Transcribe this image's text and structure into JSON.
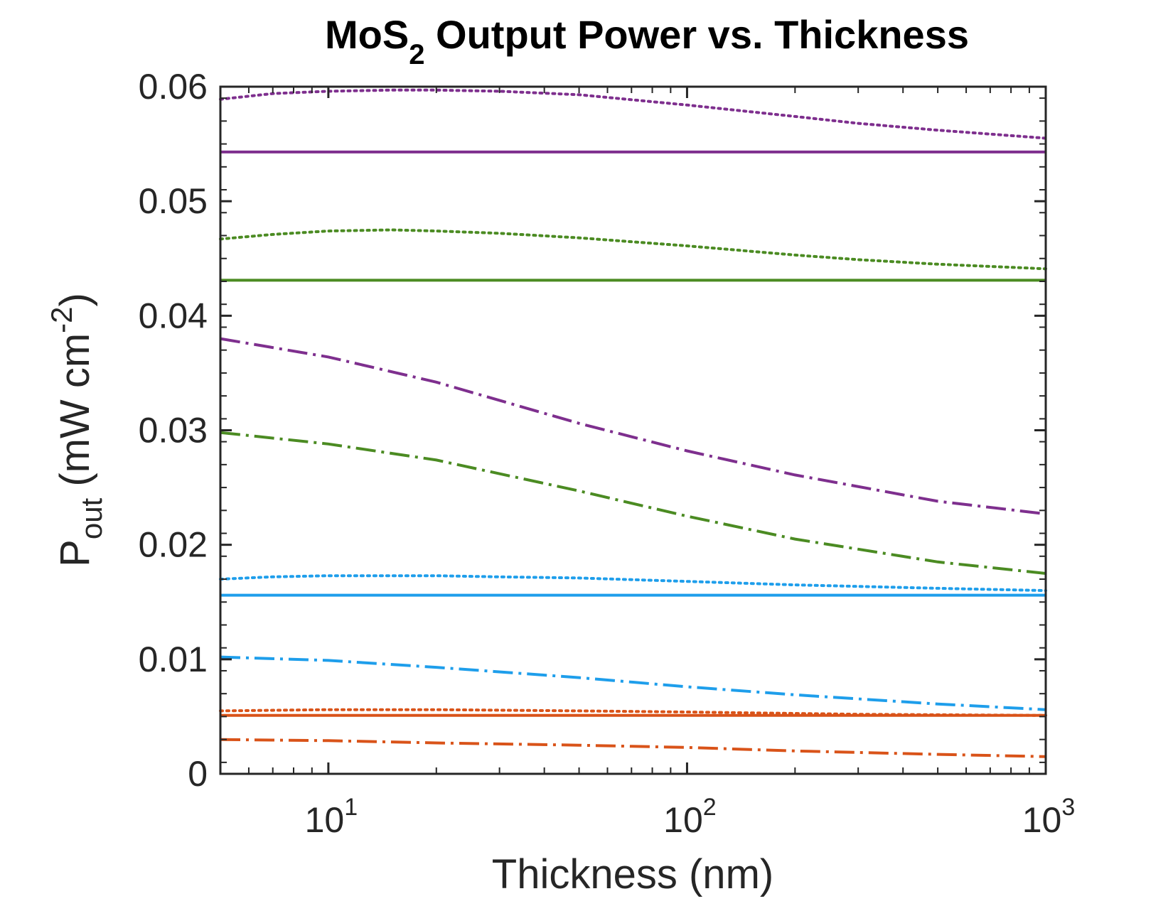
{
  "chart_data": {
    "type": "line",
    "title": "MoS",
    "title_subscript": "2",
    "title_rest": " Output Power vs. Thickness",
    "xlabel": "Thickness (nm)",
    "ylabel": {
      "main": "P",
      "subscript": "out",
      "units_pre": " (mW cm",
      "units_sup": "-2",
      "units_post": ")"
    },
    "x_scale": "log",
    "xlim": [
      5,
      1000
    ],
    "ylim": [
      0,
      0.06
    ],
    "x_ticks": [
      {
        "value": 10,
        "base": "10",
        "exp": "1"
      },
      {
        "value": 100,
        "base": "10",
        "exp": "2"
      },
      {
        "value": 1000,
        "base": "10",
        "exp": "3"
      }
    ],
    "y_ticks": [
      {
        "value": 0,
        "label": "0"
      },
      {
        "value": 0.01,
        "label": "0.01"
      },
      {
        "value": 0.02,
        "label": "0.02"
      },
      {
        "value": 0.03,
        "label": "0.03"
      },
      {
        "value": 0.04,
        "label": "0.04"
      },
      {
        "value": 0.05,
        "label": "0.05"
      },
      {
        "value": 0.06,
        "label": "0.06"
      }
    ],
    "grid": false,
    "series": [
      {
        "color": "#7E2F8E",
        "style": "dotted",
        "x": [
          5,
          7,
          10,
          15,
          20,
          30,
          50,
          100,
          200,
          300,
          500,
          1000
        ],
        "y": [
          0.0589,
          0.0594,
          0.0596,
          0.0597,
          0.0597,
          0.0596,
          0.0593,
          0.0584,
          0.0574,
          0.0568,
          0.0562,
          0.0555
        ]
      },
      {
        "color": "#7E2F8E",
        "style": "solid",
        "x": [
          5,
          1000
        ],
        "y": [
          0.0543,
          0.0543
        ]
      },
      {
        "color": "#4B8B22",
        "style": "dotted",
        "x": [
          5,
          7,
          10,
          15,
          20,
          30,
          50,
          100,
          200,
          300,
          500,
          1000
        ],
        "y": [
          0.0467,
          0.0471,
          0.0474,
          0.0475,
          0.0474,
          0.0472,
          0.0468,
          0.0461,
          0.0453,
          0.0449,
          0.0445,
          0.0441
        ]
      },
      {
        "color": "#4B8B22",
        "style": "solid",
        "x": [
          5,
          1000
        ],
        "y": [
          0.0431,
          0.0431
        ]
      },
      {
        "color": "#7E2F8E",
        "style": "dashdot",
        "x": [
          5,
          10,
          20,
          50,
          100,
          200,
          500,
          1000
        ],
        "y": [
          0.038,
          0.0364,
          0.0342,
          0.0306,
          0.0282,
          0.0261,
          0.0238,
          0.0227
        ]
      },
      {
        "color": "#4B8B22",
        "style": "dashdot",
        "x": [
          5,
          10,
          20,
          50,
          100,
          200,
          500,
          1000
        ],
        "y": [
          0.0298,
          0.0288,
          0.0274,
          0.0247,
          0.0225,
          0.0205,
          0.0185,
          0.0175
        ]
      },
      {
        "color": "#1E9EEB",
        "style": "dotted",
        "x": [
          5,
          7,
          10,
          15,
          20,
          30,
          50,
          100,
          200,
          500,
          1000
        ],
        "y": [
          0.017,
          0.0172,
          0.0173,
          0.0173,
          0.0173,
          0.0172,
          0.0171,
          0.0168,
          0.0165,
          0.0162,
          0.016
        ]
      },
      {
        "color": "#1E9EEB",
        "style": "solid",
        "x": [
          5,
          1000
        ],
        "y": [
          0.0156,
          0.0156
        ]
      },
      {
        "color": "#1E9EEB",
        "style": "dashdot",
        "x": [
          5,
          10,
          20,
          50,
          100,
          200,
          500,
          1000
        ],
        "y": [
          0.0102,
          0.0099,
          0.0093,
          0.0084,
          0.0076,
          0.0069,
          0.0061,
          0.0056
        ]
      },
      {
        "color": "#D95319",
        "style": "dotted",
        "x": [
          5,
          10,
          20,
          50,
          100,
          300,
          1000
        ],
        "y": [
          0.0055,
          0.0056,
          0.0056,
          0.0055,
          0.0054,
          0.0052,
          0.0051
        ]
      },
      {
        "color": "#D95319",
        "style": "solid",
        "x": [
          5,
          1000
        ],
        "y": [
          0.0051,
          0.0051
        ]
      },
      {
        "color": "#D95319",
        "style": "dashdot",
        "x": [
          5,
          10,
          20,
          50,
          100,
          200,
          500,
          1000
        ],
        "y": [
          0.003,
          0.0029,
          0.0027,
          0.0025,
          0.0023,
          0.002,
          0.0017,
          0.0015
        ]
      }
    ]
  }
}
